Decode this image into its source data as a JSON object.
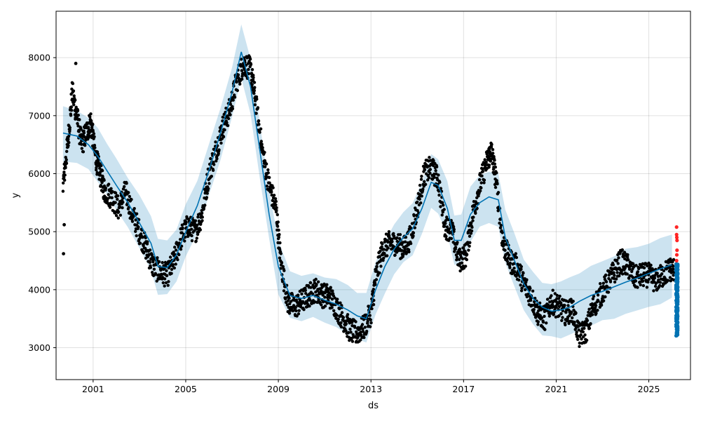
{
  "chart_data": {
    "type": "line",
    "title": "",
    "xlabel": "ds",
    "ylabel": "y",
    "xlim": [
      1999.4,
      2026.8
    ],
    "ylim": [
      2450,
      8800
    ],
    "x_ticks": [
      2001,
      2005,
      2009,
      2013,
      2017,
      2021,
      2025
    ],
    "x_tick_labels": [
      "2001",
      "2005",
      "2009",
      "2013",
      "2017",
      "2021",
      "2025"
    ],
    "y_ticks": [
      3000,
      4000,
      5000,
      6000,
      7000,
      8000
    ],
    "y_tick_labels": [
      "3000",
      "4000",
      "5000",
      "6000",
      "7000",
      "8000"
    ],
    "grid": true,
    "legend": "none",
    "colors": {
      "observed": "#000000",
      "forecast": "#0072B2",
      "uncertainty": "#0072B2",
      "anomaly": "#ff0000"
    },
    "forecast": {
      "x": [
        1999.7,
        2000.3,
        2000.8,
        2001.2,
        2001.6,
        2002.0,
        2002.5,
        2003.0,
        2003.5,
        2003.8,
        2004.2,
        2004.6,
        2005.0,
        2005.5,
        2006.0,
        2006.5,
        2007.0,
        2007.4,
        2007.8,
        2008.2,
        2008.6,
        2009.0,
        2009.5,
        2010.0,
        2010.5,
        2011.0,
        2011.5,
        2012.0,
        2012.4,
        2012.8,
        2013.2,
        2013.6,
        2014.0,
        2014.4,
        2014.8,
        2015.2,
        2015.6,
        2015.9,
        2016.3,
        2016.6,
        2016.9,
        2017.3,
        2017.7,
        2018.1,
        2018.5,
        2018.8,
        2019.2,
        2019.6,
        2020.0,
        2020.4,
        2020.8,
        2021.2,
        2021.6,
        2022.0,
        2022.5,
        2023.0,
        2023.5,
        2024.0,
        2024.5,
        2025.0,
        2025.5,
        2026.0
      ],
      "yhat": [
        6700,
        6650,
        6500,
        6300,
        6050,
        5800,
        5500,
        5150,
        4800,
        4400,
        4380,
        4600,
        5000,
        5450,
        6050,
        6700,
        7400,
        8100,
        7500,
        6400,
        5300,
        4400,
        3900,
        3850,
        3900,
        3820,
        3750,
        3650,
        3550,
        3500,
        4000,
        4400,
        4700,
        4900,
        5050,
        5400,
        5850,
        5800,
        5400,
        4850,
        4850,
        5300,
        5500,
        5600,
        5550,
        4900,
        4500,
        4100,
        3850,
        3700,
        3630,
        3650,
        3700,
        3800,
        3900,
        3970,
        4050,
        4130,
        4200,
        4280,
        4360,
        4430
      ],
      "lower": [
        6250,
        6200,
        6050,
        5850,
        5600,
        5350,
        5050,
        4700,
        4350,
        3950,
        3930,
        4150,
        4550,
        5000,
        5600,
        6250,
        6950,
        7650,
        7050,
        5950,
        4850,
        3950,
        3500,
        3450,
        3500,
        3420,
        3350,
        3250,
        3150,
        3050,
        3550,
        3950,
        4250,
        4450,
        4600,
        4950,
        5400,
        5350,
        4950,
        4400,
        4400,
        4850,
        5050,
        5150,
        5100,
        4450,
        4050,
        3650,
        3400,
        3250,
        3180,
        3150,
        3200,
        3300,
        3380,
        3450,
        3520,
        3590,
        3660,
        3720,
        3790,
        3850
      ],
      "upper": [
        7150,
        7100,
        6950,
        6750,
        6500,
        6250,
        5950,
        5600,
        5250,
        4850,
        4830,
        5050,
        5450,
        5900,
        6500,
        7150,
        7850,
        8550,
        7950,
        6850,
        5750,
        4850,
        4300,
        4250,
        4300,
        4220,
        4150,
        4050,
        3950,
        3950,
        4450,
        4850,
        5150,
        5350,
        5500,
        5850,
        6300,
        6250,
        5850,
        5300,
        5300,
        5750,
        5950,
        6050,
        6000,
        5350,
        4950,
        4550,
        4300,
        4150,
        4080,
        4150,
        4200,
        4300,
        4420,
        4500,
        4580,
        4670,
        4740,
        4830,
        4910,
        4980
      ]
    },
    "observed_trace": {
      "x": [
        1999.7,
        1999.9,
        2000.1,
        2000.3,
        2000.5,
        2000.7,
        2000.9,
        2001.1,
        2001.3,
        2001.5,
        2001.8,
        2002.1,
        2002.4,
        2002.7,
        2003.0,
        2003.3,
        2003.6,
        2003.9,
        2004.2,
        2004.5,
        2004.8,
        2005.1,
        2005.4,
        2005.7,
        2006.0,
        2006.3,
        2006.6,
        2006.9,
        2007.2,
        2007.5,
        2007.8,
        2008.0,
        2008.3,
        2008.6,
        2008.9,
        2009.1,
        2009.4,
        2009.7,
        2010.0,
        2010.3,
        2010.6,
        2010.9,
        2011.2,
        2011.5,
        2011.8,
        2012.1,
        2012.4,
        2012.7,
        2013.0,
        2013.2,
        2013.5,
        2013.8,
        2014.1,
        2014.4,
        2014.7,
        2015.0,
        2015.3,
        2015.6,
        2015.9,
        2016.2,
        2016.5,
        2016.8,
        2017.1,
        2017.4,
        2017.7,
        2018.0,
        2018.2,
        2018.4,
        2018.7,
        2019.0,
        2019.3,
        2019.6,
        2019.9,
        2020.2,
        2020.5,
        2020.8,
        2021.1,
        2021.4,
        2021.7,
        2022.0,
        2022.3,
        2022.6,
        2022.9,
        2023.2,
        2023.5,
        2023.8,
        2024.1,
        2024.4,
        2024.7,
        2025.0,
        2025.3,
        2025.6,
        2025.9,
        2026.1
      ],
      "y": [
        5800,
        6500,
        7400,
        7000,
        6500,
        6700,
        6900,
        6300,
        6000,
        5700,
        5600,
        5400,
        5700,
        5300,
        5000,
        4700,
        4400,
        4300,
        4250,
        4500,
        4900,
        5100,
        5000,
        5300,
        6000,
        6400,
        6800,
        7100,
        7600,
        7900,
        7800,
        7300,
        6400,
        5800,
        5400,
        4500,
        3800,
        3700,
        3800,
        3900,
        4000,
        3900,
        3900,
        3700,
        3500,
        3300,
        3250,
        3350,
        3600,
        4200,
        4700,
        4800,
        4800,
        4700,
        4900,
        5400,
        6000,
        6100,
        5900,
        5100,
        5000,
        4500,
        4600,
        5300,
        5800,
        6200,
        6400,
        5900,
        4800,
        4500,
        4400,
        4100,
        3900,
        3600,
        3500,
        3800,
        3700,
        3600,
        3650,
        3200,
        3300,
        3700,
        3900,
        4100,
        4300,
        4500,
        4400,
        4200,
        4250,
        4250,
        4150,
        4250,
        4350,
        4350
      ]
    },
    "outliers": {
      "x": [
        1999.72,
        1999.75,
        2000.25
      ],
      "y": [
        4620,
        5120,
        7900
      ]
    },
    "forecast_points": {
      "x": [
        2026.18,
        2026.2,
        2026.21,
        2026.22,
        2026.23,
        2026.24,
        2026.25
      ],
      "y_range": [
        3200,
        4450
      ]
    },
    "anomalies": {
      "x": [
        2026.2,
        2026.2,
        2026.21,
        2026.22,
        2026.22,
        2026.21,
        2026.2
      ],
      "y": [
        5080,
        4950,
        4900,
        4850,
        4680,
        4600,
        4500
      ]
    }
  }
}
